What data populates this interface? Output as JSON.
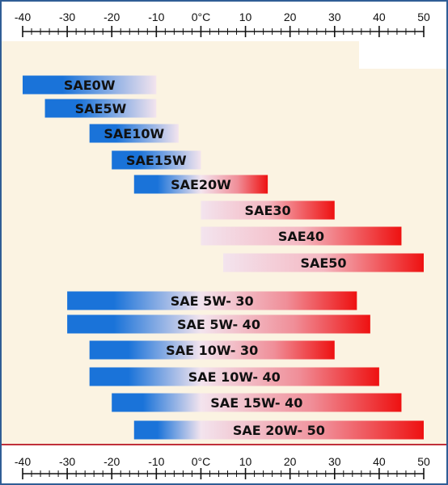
{
  "chart_data": {
    "type": "bar",
    "orientation": "horizontal-range",
    "title": "",
    "xlabel": "",
    "ylabel": "",
    "x_unit": "°C",
    "xlim": [
      -40,
      50
    ],
    "axis_positions": [
      "top",
      "bottom"
    ],
    "x_ticks": [
      {
        "value": -40,
        "label": "-40"
      },
      {
        "value": -30,
        "label": "-30"
      },
      {
        "value": -20,
        "label": "-20"
      },
      {
        "value": -10,
        "label": "-10"
      },
      {
        "value": 0,
        "label": "0°C"
      },
      {
        "value": 10,
        "label": "10"
      },
      {
        "value": 20,
        "label": "20"
      },
      {
        "value": 30,
        "label": "30"
      },
      {
        "value": 40,
        "label": "40"
      },
      {
        "value": 50,
        "label": "50"
      }
    ],
    "bars": [
      {
        "label": "SAE0W",
        "start": -40,
        "end": -10
      },
      {
        "label": "SAE5W",
        "start": -35,
        "end": -10
      },
      {
        "label": "SAE10W",
        "start": -25,
        "end": -5
      },
      {
        "label": "SAE15W",
        "start": -20,
        "end": 0
      },
      {
        "label": "SAE20W",
        "start": -15,
        "end": 15
      },
      {
        "label": "SAE30",
        "start": 0,
        "end": 30
      },
      {
        "label": "SAE40",
        "start": 0,
        "end": 45
      },
      {
        "label": "SAE50",
        "start": 5,
        "end": 50
      },
      {
        "label": "SAE 5W- 30",
        "start": -30,
        "end": 35
      },
      {
        "label": "SAE 5W- 40",
        "start": -30,
        "end": 38
      },
      {
        "label": "SAE 10W- 30",
        "start": -25,
        "end": 30
      },
      {
        "label": "SAE 10W- 40",
        "start": -25,
        "end": 40
      },
      {
        "label": "SAE 15W- 40",
        "start": -20,
        "end": 45
      },
      {
        "label": "SAE 20W- 50",
        "start": -15,
        "end": 50
      }
    ],
    "colors": {
      "cold": "#1a73d9",
      "hot": "#ee1111",
      "mid": "#f3e4ee",
      "background": "#fbf3e2",
      "frame": "#2f5d95",
      "divider": "#c0303a"
    },
    "grid": false,
    "legend": "none"
  }
}
